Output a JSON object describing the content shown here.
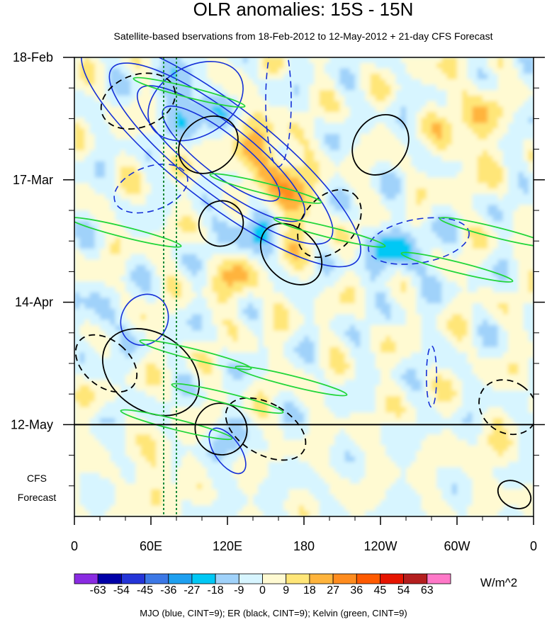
{
  "chart_data": {
    "type": "heatmap",
    "title": "OLR anomalies: 15S - 15N",
    "subtitle": "Satellite-based bservations from 18-Feb-2012 to 12-May-2012 + 21-day CFS Forecast",
    "x_axis": {
      "range_deg_east": [
        0,
        360
      ],
      "tick_positions_deg": [
        0,
        60,
        120,
        180,
        240,
        300,
        360
      ],
      "tick_labels": [
        "0",
        "60E",
        "120E",
        "180",
        "120W",
        "60W",
        "0"
      ]
    },
    "y_axis": {
      "time_range_days": [
        0,
        105
      ],
      "direction": "time increases downward",
      "ticks": [
        {
          "label": "18-Feb",
          "day": 0
        },
        {
          "label": "17-Mar",
          "day": 28
        },
        {
          "label": "14-Apr",
          "day": 56
        },
        {
          "label": "12-May",
          "day": 84
        }
      ],
      "observation_end_label": "12-May",
      "observation_end_day": 84,
      "forecast_label_line1": "CFS",
      "forecast_label_line2": "Forecast",
      "forecast_days": 21
    },
    "colorbar": {
      "levels": [
        "-63",
        "-54",
        "-45",
        "-36",
        "-27",
        "-18",
        "-9",
        "0",
        "9",
        "18",
        "27",
        "36",
        "45",
        "54",
        "63"
      ],
      "colors": [
        "#8a2be2",
        "#0000a8",
        "#2435d8",
        "#3c78e6",
        "#1ea0f0",
        "#00c8f5",
        "#a0d2fa",
        "#d7f5ff",
        "#fffad2",
        "#ffe678",
        "#ffb43c",
        "#ff8c1e",
        "#ff5a00",
        "#e61400",
        "#b41e1e",
        "#ff78c8"
      ],
      "units": "W/m^2"
    },
    "contour_legend": "MJO (blue, CINT=9); ER (black, CINT=9); Kelvin (green, CINT=9)",
    "contour_series": [
      {
        "name": "MJO",
        "color": "#1530d8",
        "cint": 9
      },
      {
        "name": "ER",
        "color": "#000000",
        "cint": 9
      },
      {
        "name": "Kelvin",
        "color": "#22d63a",
        "cint": 9
      }
    ],
    "reference_lines_deg": [
      70,
      80
    ]
  }
}
